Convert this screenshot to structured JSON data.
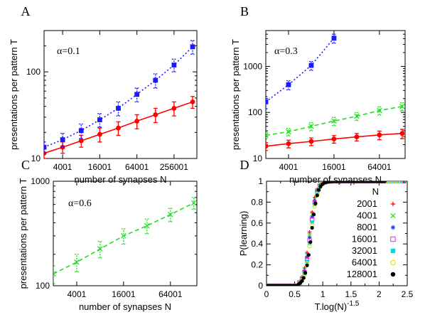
{
  "chart_data": [
    {
      "panel_label": "A",
      "type": "line",
      "xscale": "log",
      "yscale": "log",
      "xlim": [
        2001,
        600000
      ],
      "ylim": [
        10,
        300
      ],
      "xticks": [
        4001,
        16001,
        64001,
        256001
      ],
      "xtick_labels": [
        "4001",
        "16001",
        "64001",
        "256001"
      ],
      "yticks": [
        10,
        100
      ],
      "ytick_labels": [
        "10",
        "100"
      ],
      "xlabel": "number of synapses N",
      "ylabel": "presentations per pattern T",
      "annotation": "α=0.1",
      "series": [
        {
          "color": "#ff0000",
          "marker": "circle",
          "line": "solid",
          "x": [
            2001,
            4001,
            8001,
            16001,
            32001,
            64001,
            128001,
            256001,
            512001
          ],
          "y": [
            11.5,
            13.5,
            16.0,
            19.0,
            22.5,
            27.0,
            32.0,
            38.0,
            45.0
          ],
          "err": [
            1.5,
            2.0,
            2.5,
            3.5,
            4.0,
            5.0,
            6.0,
            7.0,
            7.0
          ]
        },
        {
          "color": "#1a1aff",
          "marker": "square",
          "line": "dotted",
          "x": [
            2001,
            4001,
            8001,
            16001,
            32001,
            64001,
            128001,
            256001,
            512001
          ],
          "y": [
            13.5,
            16.5,
            21.0,
            28.0,
            38.0,
            55.0,
            80.0,
            120.0,
            195.0
          ],
          "err": [
            2.0,
            3.0,
            4.0,
            5.0,
            7.0,
            10.0,
            15.0,
            20.0,
            35.0
          ]
        }
      ]
    },
    {
      "panel_label": "B",
      "type": "line",
      "xscale": "log",
      "yscale": "log",
      "xlim": [
        2001,
        140000
      ],
      "ylim": [
        10,
        6000
      ],
      "xticks": [
        4001,
        16001,
        64001
      ],
      "xtick_labels": [
        "4001",
        "16001",
        "64001"
      ],
      "yticks": [
        10,
        100,
        1000
      ],
      "ytick_labels": [
        "10",
        "100",
        "1000"
      ],
      "xlabel": "number of synapses N",
      "ylabel": "presentations per pattern T",
      "annotation": "α=0.3",
      "series": [
        {
          "color": "#ff0000",
          "marker": "circle",
          "line": "solid",
          "x": [
            2001,
            4001,
            8001,
            16001,
            32001,
            64001,
            128001
          ],
          "y": [
            18.5,
            21.0,
            23.5,
            26.5,
            29.5,
            32.5,
            35.0
          ],
          "err": [
            3.5,
            4.0,
            4.5,
            5.0,
            5.5,
            7.0,
            8.0
          ]
        },
        {
          "color": "#22dd22",
          "marker": "x",
          "line": "dashed",
          "x": [
            2001,
            4001,
            8001,
            16001,
            32001,
            64001,
            128001
          ],
          "y": [
            32.0,
            38.0,
            50.0,
            65.0,
            83.0,
            110.0,
            135.0
          ],
          "err": [
            5.0,
            7.0,
            10.0,
            13.0,
            16.0,
            22.0,
            27.0
          ]
        },
        {
          "color": "#1a1aff",
          "marker": "square",
          "line": "dotted",
          "x": [
            2001,
            4001,
            8001,
            16001
          ],
          "y": [
            170.0,
            400.0,
            1050.0,
            4100.0
          ],
          "err": [
            50.0,
            90.0,
            230.0,
            900.0
          ]
        }
      ]
    },
    {
      "panel_label": "C",
      "type": "line",
      "xscale": "log",
      "yscale": "log",
      "xlim": [
        2001,
        140000
      ],
      "ylim": [
        100,
        1000
      ],
      "xticks": [
        4001,
        16001,
        64001
      ],
      "xtick_labels": [
        "4001",
        "16001",
        "64001"
      ],
      "yticks": [
        100,
        1000
      ],
      "ytick_labels": [
        "100",
        "1000"
      ],
      "xlabel": "number of synapses N",
      "ylabel": "presentations per pattern T",
      "annotation": "α=0.6",
      "series": [
        {
          "color": "#22dd22",
          "marker": "x",
          "line": "dashed",
          "x": [
            2001,
            4001,
            8001,
            16001,
            32001,
            64001,
            128001
          ],
          "y": [
            130.0,
            168.0,
            225.0,
            300.0,
            375.0,
            480.0,
            620.0
          ],
          "err": [
            25.0,
            32.0,
            40.0,
            50.0,
            60.0,
            70.0,
            80.0
          ]
        }
      ]
    },
    {
      "panel_label": "D",
      "type": "scatter",
      "xscale": "linear",
      "yscale": "linear",
      "xlim": [
        0,
        2.5
      ],
      "ylim": [
        0,
        1
      ],
      "xticks": [
        0,
        0.5,
        1,
        1.5,
        2,
        2.5
      ],
      "xtick_labels": [
        "0",
        "0.5",
        "1",
        "1.5",
        "2",
        "2.5"
      ],
      "yticks": [
        0,
        0.2,
        0.4,
        0.6,
        0.8,
        1
      ],
      "ytick_labels": [
        "0",
        "0.2",
        "0.4",
        "0.6",
        "0.8",
        "1"
      ],
      "xlabel": "T.log(N)",
      "xlabel_sup": "-1.5",
      "ylabel": "P(learning)",
      "legend_title": "N",
      "legend_placement": "right",
      "curve": {
        "midpoint": 0.78,
        "width": 0.055
      },
      "series": [
        {
          "name": "2001",
          "color": "#ff0000",
          "marker": "plus",
          "x_end": 2.5
        },
        {
          "name": "4001",
          "color": "#22dd22",
          "marker": "x",
          "x_end": 2.5
        },
        {
          "name": "8001",
          "color": "#2233ff",
          "marker": "star",
          "x_end": 2.45
        },
        {
          "name": "16001",
          "color": "#ee22ee",
          "marker": "open-square",
          "x_end": 2.45
        },
        {
          "name": "32001",
          "color": "#00dddd",
          "marker": "filled-square",
          "x_end": 2.4
        },
        {
          "name": "64001",
          "color": "#dddd00",
          "marker": "open-circle",
          "x_end": 2.4
        },
        {
          "name": "128001",
          "color": "#000000",
          "marker": "filled-circle",
          "x_end": 2.1
        }
      ]
    }
  ]
}
